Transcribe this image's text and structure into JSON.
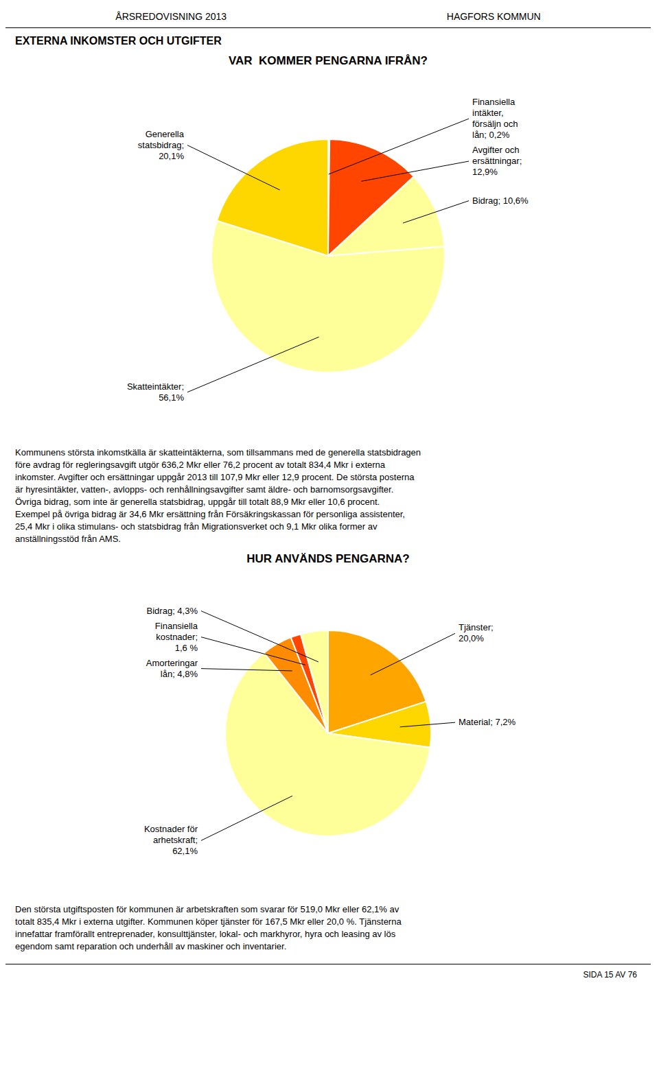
{
  "chart_data": [
    {
      "type": "pie",
      "title": "VAR  KOMMER PENGARNA IFRÅN?",
      "categories": [
        "Finansiella\nintäkter,\nförsäljn och\nlån; 0,2%",
        "Avgifter och\nersättningar;\n12,9%",
        "Bidrag; 10,6%",
        "Skatteintäkter;\n56,1%",
        "Generella\nstatsbidrag;\n20,1%"
      ],
      "values": [
        0.2,
        12.9,
        10.6,
        56.1,
        20.1
      ],
      "colors": [
        "#FFA040",
        "#FF4500",
        "#FFFF99",
        "#FFFF99",
        "#FFD700"
      ],
      "annotations": [
        "ÅRSREDOVISNING 2013",
        "HAGFORS KOMMUN",
        "EXTERNA INKOMSTER OCH UTGIFTER",
        "Kommunens största inkomstkälla är skatteintäkterna, som tillsammans med de generella statsbidragen",
        "före avdrag för regleringsavgift utgör 636,2 Mkr eller 76,2 procent av totalt 834,4 Mkr i externa",
        "inkomster. Avgifter och ersättningar uppgår 2013 till 107,9 Mkr eller 12,9 procent. De största posterna",
        "är hyresintäkter, vatten-, avlopps- och renhållningsavgifter samt äldre- och barnomsorgsavgifter.",
        "Övriga bidrag, som inte är generella statsbidrag, uppgår till totalt 88,9 Mkr eller 10,6 procent.",
        "Exempel på övriga bidrag är 34,6 Mkr ersättning från Försäkringskassan för personliga assistenter,",
        "25,4 Mkr i olika stimulans- och statsbidrag från Migrationsverket och 9,1 Mkr olika former av",
        "anställningsstöd från AMS."
      ]
    },
    {
      "type": "pie",
      "title": "HUR ANVÄNDS PENGARNA?",
      "categories": [
        "Tjänster;\n20,0%",
        "Material; 7,2%",
        "Kostnader för\narhetskraft;\n62,1%",
        "Amorteringar\nlån; 4,8%",
        "Finansiella\nkostnader;\n1,6 %",
        "Bidrag; 4,3%"
      ],
      "values": [
        20.0,
        7.2,
        62.1,
        4.8,
        1.6,
        4.3
      ],
      "colors": [
        "#FFA500",
        "#FFD700",
        "#FFFF99",
        "#FF8C00",
        "#FF4500",
        "#FFFF99"
      ],
      "annotations": [
        "Den största utgiftsposten för kommunen är arbetskraften som svarar för 519,0 Mkr eller 62,1% av",
        "totalt 835,4 Mkr i externa utgifter. Kommunen köper tjänster för 167,5 Mkr eller 20,0 %. Tjänsterna",
        "innefattar framförallt entreprenader, konsulttjänster, lokal- och markhyror, hyra och leasing av lös",
        "egendom samt reparation och underhåll av maskiner och inventarier.",
        "SIDA 15 AV 76"
      ]
    }
  ]
}
